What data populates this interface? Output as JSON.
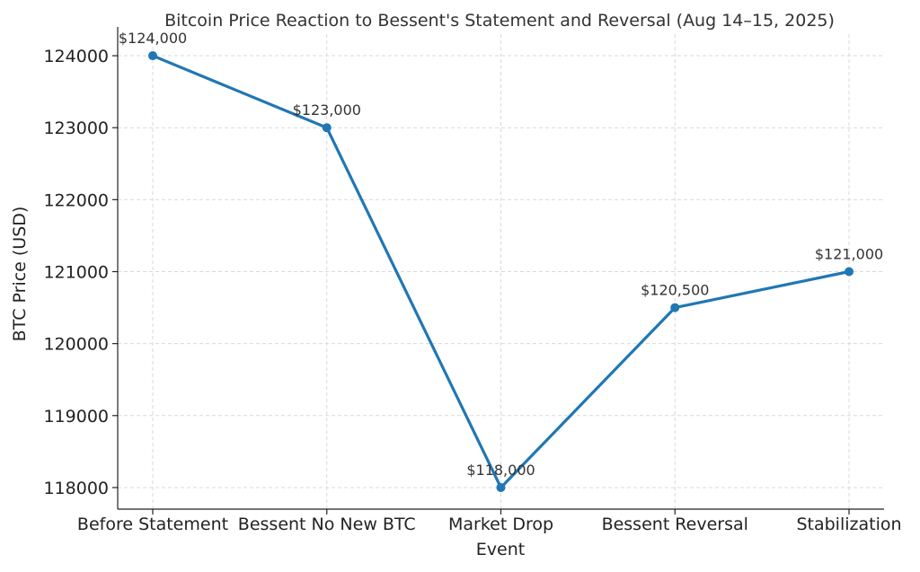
{
  "chart_data": {
    "type": "line",
    "title": "Bitcoin Price Reaction to Bessent's Statement and Reversal (Aug 14–15, 2025)",
    "xlabel": "Event",
    "ylabel": "BTC Price (USD)",
    "categories": [
      "Before Statement",
      "Bessent No New BTC",
      "Market Drop",
      "Bessent Reversal",
      "Stabilization"
    ],
    "series": [
      {
        "values": [
          124000,
          123000,
          118000,
          120500,
          121000
        ]
      }
    ],
    "data_labels": [
      "$124,000",
      "$123,000",
      "$118,000",
      "$120,500",
      "$121,000"
    ],
    "yticks": [
      118000,
      119000,
      120000,
      121000,
      122000,
      123000,
      124000
    ],
    "ylim": [
      117700,
      124300
    ],
    "grid": true,
    "legend": "none",
    "colors": {
      "line": "#1f77b4",
      "text": "#333333",
      "grid": "#d9d9d9"
    }
  }
}
